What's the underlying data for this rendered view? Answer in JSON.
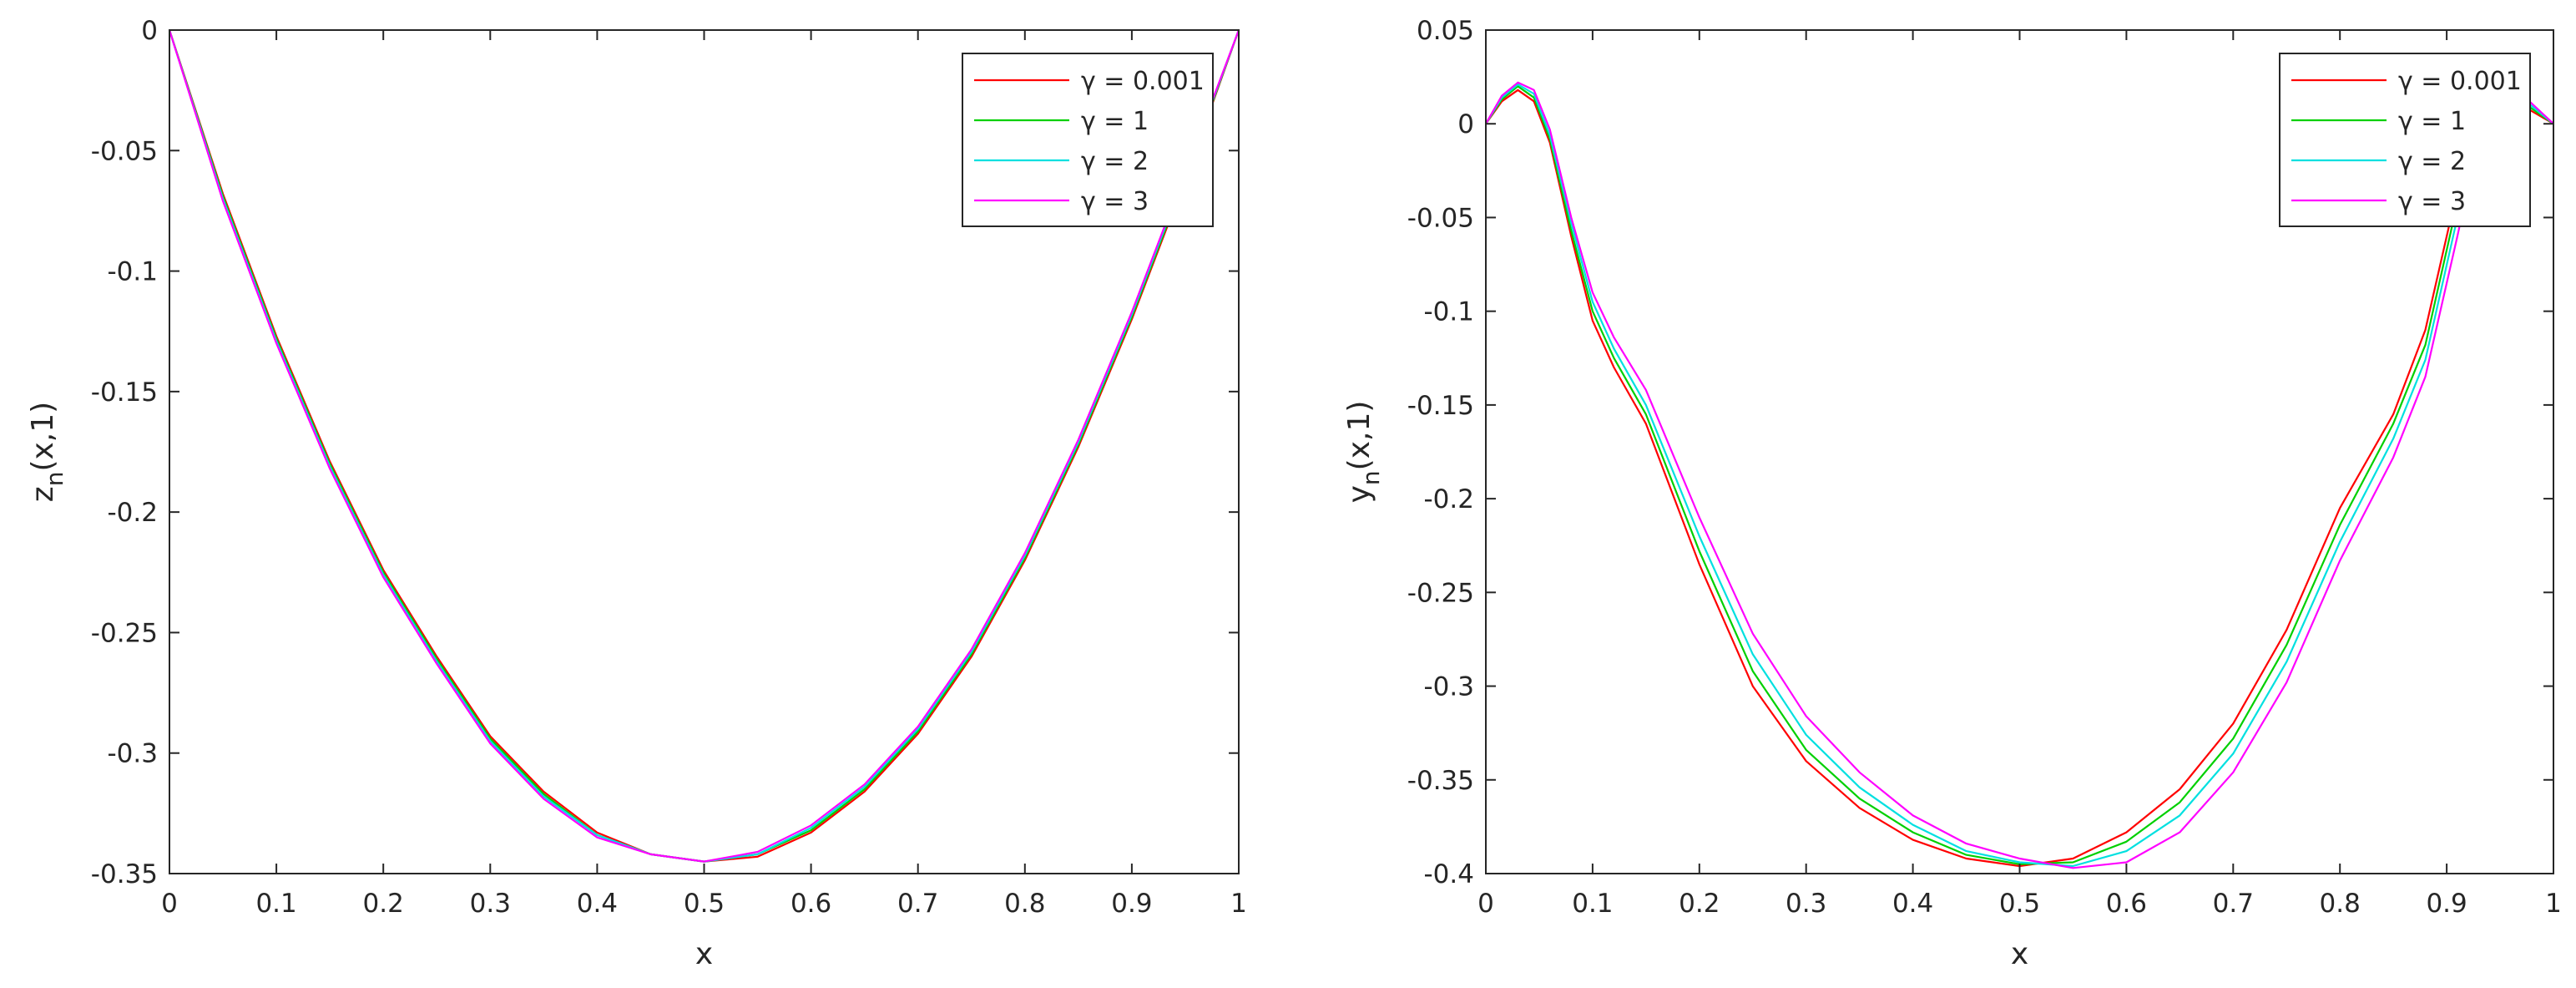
{
  "chart_data": [
    {
      "type": "line",
      "title": "",
      "xlabel": "x",
      "ylabel_main": "z",
      "ylabel_sub": "n",
      "ylabel_tail": "(x,1)",
      "xlim": [
        0,
        1
      ],
      "ylim": [
        -0.35,
        0
      ],
      "xticks": [
        0,
        0.1,
        0.2,
        0.3,
        0.4,
        0.5,
        0.6,
        0.7,
        0.8,
        0.9,
        1
      ],
      "xtick_labels": [
        "0",
        "0.1",
        "0.2",
        "0.3",
        "0.4",
        "0.5",
        "0.6",
        "0.7",
        "0.8",
        "0.9",
        "1"
      ],
      "yticks": [
        0,
        -0.05,
        -0.1,
        -0.15,
        -0.2,
        -0.25,
        -0.3,
        -0.35
      ],
      "ytick_labels": [
        "0",
        "-0.05",
        "-0.1",
        "-0.15",
        "-0.2",
        "-0.25",
        "-0.3",
        "-0.35"
      ],
      "grid": false,
      "legend_position": "top-right",
      "x": [
        0,
        0.05,
        0.1,
        0.15,
        0.2,
        0.25,
        0.3,
        0.35,
        0.4,
        0.45,
        0.5,
        0.55,
        0.6,
        0.65,
        0.7,
        0.75,
        0.8,
        0.85,
        0.9,
        0.95,
        1
      ],
      "series": [
        {
          "name": "γ = 0.001",
          "color": "#ff0000",
          "values": [
            0,
            -0.068,
            -0.127,
            -0.179,
            -0.224,
            -0.26,
            -0.293,
            -0.316,
            -0.333,
            -0.342,
            -0.345,
            -0.343,
            -0.333,
            -0.316,
            -0.292,
            -0.26,
            -0.22,
            -0.173,
            -0.12,
            -0.062,
            0
          ]
        },
        {
          "name": "γ = 1",
          "color": "#00d000",
          "values": [
            0,
            -0.069,
            -0.128,
            -0.18,
            -0.225,
            -0.261,
            -0.294,
            -0.317,
            -0.334,
            -0.342,
            -0.345,
            -0.342,
            -0.332,
            -0.315,
            -0.291,
            -0.259,
            -0.219,
            -0.172,
            -0.119,
            -0.061,
            0
          ]
        },
        {
          "name": "γ = 2",
          "color": "#00e0e0",
          "values": [
            0,
            -0.07,
            -0.129,
            -0.181,
            -0.226,
            -0.262,
            -0.295,
            -0.318,
            -0.334,
            -0.342,
            -0.345,
            -0.342,
            -0.331,
            -0.314,
            -0.29,
            -0.258,
            -0.218,
            -0.171,
            -0.118,
            -0.06,
            0
          ]
        },
        {
          "name": "γ = 3",
          "color": "#ff00ff",
          "values": [
            0,
            -0.071,
            -0.13,
            -0.182,
            -0.227,
            -0.263,
            -0.296,
            -0.319,
            -0.335,
            -0.342,
            -0.345,
            -0.341,
            -0.33,
            -0.313,
            -0.289,
            -0.257,
            -0.217,
            -0.17,
            -0.117,
            -0.059,
            0
          ]
        }
      ]
    },
    {
      "type": "line",
      "title": "",
      "xlabel": "x",
      "ylabel_main": "y",
      "ylabel_sub": "n",
      "ylabel_tail": "(x,1)",
      "xlim": [
        0,
        1
      ],
      "ylim": [
        -0.4,
        0.05
      ],
      "xticks": [
        0,
        0.1,
        0.2,
        0.3,
        0.4,
        0.5,
        0.6,
        0.7,
        0.8,
        0.9,
        1
      ],
      "xtick_labels": [
        "0",
        "0.1",
        "0.2",
        "0.3",
        "0.4",
        "0.5",
        "0.6",
        "0.7",
        "0.8",
        "0.9",
        "1"
      ],
      "yticks": [
        0.05,
        0,
        -0.05,
        -0.1,
        -0.15,
        -0.2,
        -0.25,
        -0.3,
        -0.35,
        -0.4
      ],
      "ytick_labels": [
        "0.05",
        "0",
        "-0.05",
        "-0.1",
        "-0.15",
        "-0.2",
        "-0.25",
        "-0.3",
        "-0.35",
        "-0.4"
      ],
      "grid": false,
      "legend_position": "top-right",
      "x": [
        0,
        0.015,
        0.03,
        0.045,
        0.06,
        0.08,
        0.1,
        0.12,
        0.15,
        0.2,
        0.25,
        0.3,
        0.35,
        0.4,
        0.45,
        0.5,
        0.55,
        0.6,
        0.65,
        0.7,
        0.75,
        0.8,
        0.85,
        0.88,
        0.91,
        0.94,
        0.97,
        1
      ],
      "series": [
        {
          "name": "γ = 0.001",
          "color": "#ff0000",
          "values": [
            0,
            0.012,
            0.018,
            0.012,
            -0.01,
            -0.06,
            -0.105,
            -0.13,
            -0.16,
            -0.235,
            -0.3,
            -0.34,
            -0.365,
            -0.382,
            -0.392,
            -0.396,
            -0.392,
            -0.378,
            -0.355,
            -0.32,
            -0.27,
            -0.205,
            -0.155,
            -0.11,
            -0.035,
            0.015,
            0.01,
            0
          ]
        },
        {
          "name": "γ = 1",
          "color": "#00d000",
          "values": [
            0,
            0.013,
            0.02,
            0.014,
            -0.008,
            -0.057,
            -0.1,
            -0.125,
            -0.155,
            -0.228,
            -0.292,
            -0.334,
            -0.36,
            -0.378,
            -0.39,
            -0.395,
            -0.394,
            -0.383,
            -0.362,
            -0.328,
            -0.278,
            -0.214,
            -0.16,
            -0.118,
            -0.042,
            0.016,
            0.012,
            0
          ]
        },
        {
          "name": "γ = 2",
          "color": "#00e0e0",
          "values": [
            0,
            0.014,
            0.021,
            0.016,
            -0.006,
            -0.053,
            -0.095,
            -0.12,
            -0.15,
            -0.22,
            -0.283,
            -0.326,
            -0.354,
            -0.374,
            -0.388,
            -0.394,
            -0.396,
            -0.388,
            -0.369,
            -0.336,
            -0.287,
            -0.223,
            -0.168,
            -0.126,
            -0.05,
            0.017,
            0.014,
            0
          ]
        },
        {
          "name": "γ = 3",
          "color": "#ff00ff",
          "values": [
            0,
            0.015,
            0.022,
            0.018,
            -0.003,
            -0.05,
            -0.09,
            -0.114,
            -0.142,
            -0.21,
            -0.272,
            -0.316,
            -0.346,
            -0.369,
            -0.384,
            -0.392,
            -0.397,
            -0.394,
            -0.378,
            -0.346,
            -0.298,
            -0.233,
            -0.178,
            -0.135,
            -0.06,
            0.018,
            0.016,
            0
          ]
        }
      ]
    }
  ]
}
